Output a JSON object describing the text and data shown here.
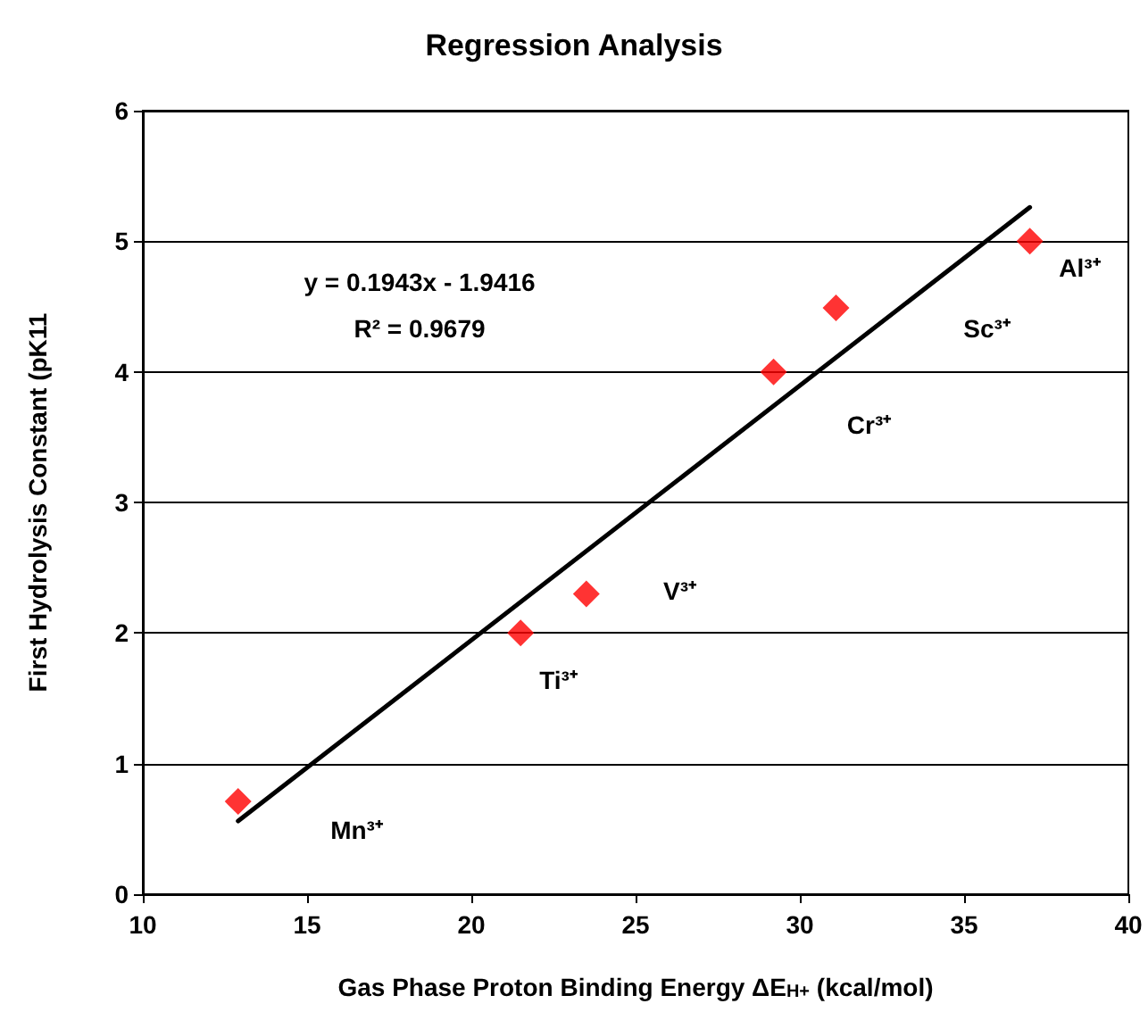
{
  "chart_data": {
    "type": "scatter",
    "title": "Regression Analysis",
    "xlabel": "Gas Phase Proton Binding Energy ΔE$_{H+}$ (kcal/mol)",
    "ylabel": "First Hydrolysis Constant (pK11",
    "series": [
      {
        "color": "#ff0000",
        "marker": "diamond",
        "x": [
          12.9,
          21.5,
          23.5,
          29.2,
          31.1,
          37.0
        ],
        "values": [
          0.71,
          2.0,
          2.3,
          4.0,
          4.49,
          5.0
        ]
      },
      {
        "type": "line",
        "color": "#000000",
        "marker": "none",
        "x": [
          12.9,
          37.0
        ],
        "values": [
          0.56,
          5.26
        ]
      }
    ],
    "annotations": [
      "y = 0.1943x - 1.9416",
      "R² = 0.9679",
      "Mn³⁺",
      "Ti³⁺",
      "V³⁺",
      "Cr³⁺",
      "Sc³⁺",
      "Al³⁺"
    ],
    "xlim": [
      10,
      40
    ],
    "xticks": [
      10,
      15,
      20,
      25,
      30,
      35,
      40
    ],
    "ylim": [
      0,
      6
    ],
    "yticks": [
      0,
      1,
      2,
      3,
      4,
      5,
      6
    ],
    "grid": "y"
  }
}
